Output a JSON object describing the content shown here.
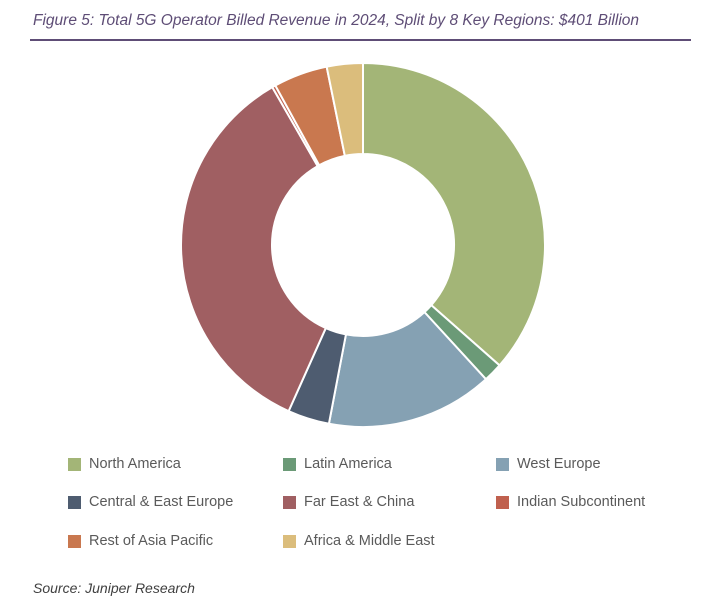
{
  "title": "Figure 5: Total 5G Operator Billed Revenue in 2024, Split by 8 Key Regions: $401 Billion",
  "source": "Source: Juniper Research",
  "chart_data": {
    "type": "pie",
    "donut": true,
    "title": "Figure 5: Total 5G Operator Billed Revenue in 2024, Split by 8 Key Regions: $401 Billion",
    "legend_placement": "bottom",
    "unit": "share of total",
    "series": [
      {
        "name": "North America",
        "value": 0.365,
        "color": "#a3b577"
      },
      {
        "name": "Latin America",
        "value": 0.017,
        "color": "#6b9a77"
      },
      {
        "name": "West Europe",
        "value": 0.148,
        "color": "#85a1b3"
      },
      {
        "name": "Central & East Europe",
        "value": 0.037,
        "color": "#4e5c70"
      },
      {
        "name": "Far East & China",
        "value": 0.35,
        "color": "#a05f62"
      },
      {
        "name": "Indian Subcontinent",
        "value": 0.003,
        "color": "#c0604e"
      },
      {
        "name": "Rest of Asia Pacific",
        "value": 0.048,
        "color": "#c9784f"
      },
      {
        "name": "Africa & Middle East",
        "value": 0.032,
        "color": "#dbbd7c"
      }
    ]
  }
}
